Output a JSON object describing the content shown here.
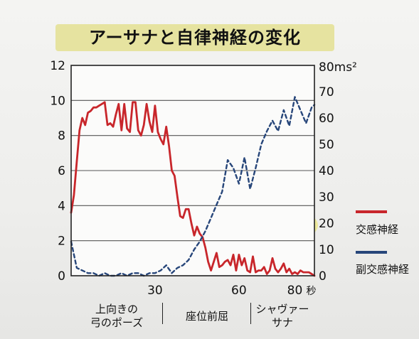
{
  "title": "アーサナと自律神経の変化",
  "y_right_unit": "80ms²",
  "x_unit": "秒",
  "colors": {
    "sympathetic": "#c8262b",
    "parasympathetic": "#27467a",
    "title_bg": "#e6e3a0",
    "illustration_bg": "#ece89a"
  },
  "phases": [
    {
      "label_line1": "上向きの",
      "label_line2": "弓のポーズ"
    },
    {
      "label_line1": "座位前屈",
      "label_line2": ""
    },
    {
      "label_line1": "シャヴァー",
      "label_line2": "サナ"
    }
  ],
  "illustrations": [
    "upward-bow-pose-icon",
    "seated-forward-bend-icon",
    "shavasana-icon"
  ],
  "chart_data": {
    "type": "line",
    "xlim": [
      0,
      87
    ],
    "x_ticks": [
      30,
      60,
      80
    ],
    "x_tick_labels": [
      "30",
      "60",
      "80"
    ],
    "ylim_left": [
      0,
      12
    ],
    "y_left_ticks": [
      0,
      2,
      4,
      6,
      8,
      10,
      12
    ],
    "ylim_right": [
      0,
      80
    ],
    "y_right_ticks": [
      0,
      10,
      20,
      30,
      40,
      50,
      60,
      70
    ],
    "grid": true,
    "legend_position": "right",
    "series": [
      {
        "name": "交感神経",
        "axis": "left",
        "style": "solid",
        "x": [
          0,
          1,
          2,
          3,
          4,
          5,
          6,
          7,
          8,
          9,
          10,
          11,
          12,
          13,
          14,
          15,
          16,
          17,
          18,
          19,
          20,
          21,
          22,
          23,
          24,
          25,
          26,
          27,
          28,
          29,
          30,
          31,
          32,
          33,
          34,
          35,
          36,
          37,
          38,
          39,
          40,
          41,
          42,
          43,
          44,
          45,
          46,
          47,
          48,
          49,
          50,
          51,
          52,
          53,
          54,
          55,
          56,
          57,
          58,
          59,
          60,
          61,
          62,
          63,
          64,
          65,
          66,
          67,
          68,
          69,
          70,
          71,
          72,
          73,
          74,
          75,
          76,
          77,
          78,
          79,
          80,
          81,
          82,
          83,
          84,
          85,
          86,
          87
        ],
        "values": [
          3.6,
          4.6,
          6.5,
          8.3,
          9.0,
          8.6,
          9.3,
          9.4,
          9.6,
          9.6,
          9.7,
          9.8,
          9.9,
          8.6,
          8.7,
          8.5,
          9.2,
          9.8,
          8.3,
          9.8,
          8.4,
          8.2,
          9.9,
          9.9,
          8.3,
          8.0,
          8.6,
          9.8,
          8.8,
          8.2,
          9.7,
          8.2,
          7.8,
          7.5,
          8.5,
          7.4,
          6.0,
          5.7,
          4.5,
          3.4,
          3.3,
          3.8,
          3.8,
          3.0,
          2.3,
          2.8,
          2.4,
          2.2,
          1.6,
          0.8,
          0.3,
          0.8,
          1.3,
          0.5,
          0.6,
          0.8,
          0.9,
          0.6,
          1.2,
          0.3,
          1.2,
          0.6,
          1.0,
          0.3,
          0.2,
          1.1,
          0.2,
          0.3,
          0.3,
          0.5,
          0.1,
          0.3,
          1.0,
          0.4,
          0.2,
          0.4,
          0.7,
          0.2,
          0.4,
          0.1,
          0.2,
          0.1,
          0.3,
          0.2,
          0.2,
          0.2,
          0.1,
          0.0
        ]
      },
      {
        "name": "副交感神経",
        "axis": "right",
        "style": "dashed",
        "x": [
          0,
          2,
          4,
          6,
          8,
          10,
          12,
          14,
          16,
          18,
          20,
          22,
          24,
          26,
          28,
          30,
          32,
          34,
          36,
          38,
          40,
          42,
          44,
          46,
          48,
          50,
          52,
          54,
          56,
          58,
          60,
          62,
          64,
          66,
          68,
          70,
          72,
          74,
          76,
          78,
          80,
          82,
          84,
          86,
          87
        ],
        "values": [
          13,
          3,
          2,
          1,
          1,
          0,
          1,
          0,
          0,
          1,
          0,
          1,
          1,
          0,
          1,
          1,
          2,
          4,
          1,
          3,
          4,
          6,
          10,
          13,
          17,
          22,
          27,
          32,
          44,
          41,
          35,
          45,
          33,
          41,
          50,
          55,
          59,
          55,
          63,
          57,
          68,
          63,
          58,
          64,
          65
        ]
      }
    ]
  }
}
